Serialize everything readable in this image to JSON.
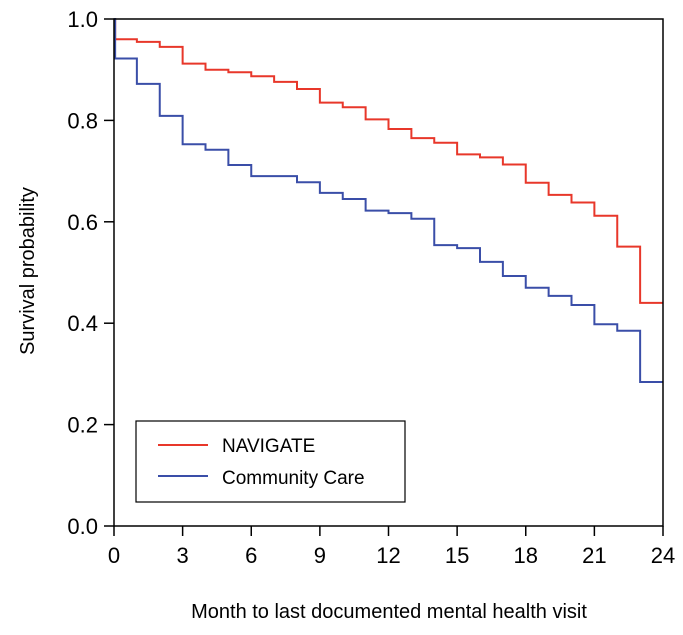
{
  "chart_data": {
    "type": "line",
    "title": "",
    "xlabel": "Month to last documented mental health visit",
    "ylabel": "Survival probability",
    "xlim": [
      0,
      24
    ],
    "ylim": [
      0,
      1
    ],
    "xticks": [
      "0",
      "3",
      "6",
      "9",
      "12",
      "15",
      "18",
      "21",
      "24"
    ],
    "yticks": [
      "0.0",
      "0.2",
      "0.4",
      "0.6",
      "0.8",
      "1.0"
    ],
    "step": true,
    "grid": false,
    "legend_position": "bottom-left",
    "series": [
      {
        "name": "NAVIGATE",
        "color": "#e8372a",
        "x": [
          0,
          0.05,
          1,
          2,
          3,
          4,
          5,
          6,
          7,
          8,
          9,
          10,
          11,
          12,
          13,
          14,
          15,
          16,
          17,
          18,
          19,
          20,
          21,
          22,
          23,
          24
        ],
        "y": [
          1.0,
          0.96,
          0.955,
          0.945,
          0.912,
          0.9,
          0.895,
          0.887,
          0.876,
          0.862,
          0.835,
          0.826,
          0.802,
          0.783,
          0.765,
          0.756,
          0.733,
          0.727,
          0.713,
          0.677,
          0.653,
          0.638,
          0.612,
          0.551,
          0.44,
          0.44
        ]
      },
      {
        "name": "Community Care",
        "color": "#3a4ea8",
        "x": [
          0,
          0.05,
          1,
          2,
          3,
          4,
          5,
          6,
          7,
          8,
          9,
          10,
          11,
          12,
          13,
          14,
          15,
          16,
          17,
          18,
          19,
          20,
          21,
          22,
          23,
          24
        ],
        "y": [
          1.0,
          0.922,
          0.872,
          0.809,
          0.753,
          0.742,
          0.712,
          0.69,
          0.69,
          0.678,
          0.657,
          0.645,
          0.622,
          0.617,
          0.606,
          0.554,
          0.548,
          0.521,
          0.493,
          0.47,
          0.454,
          0.436,
          0.398,
          0.385,
          0.284,
          0.284
        ]
      }
    ]
  }
}
